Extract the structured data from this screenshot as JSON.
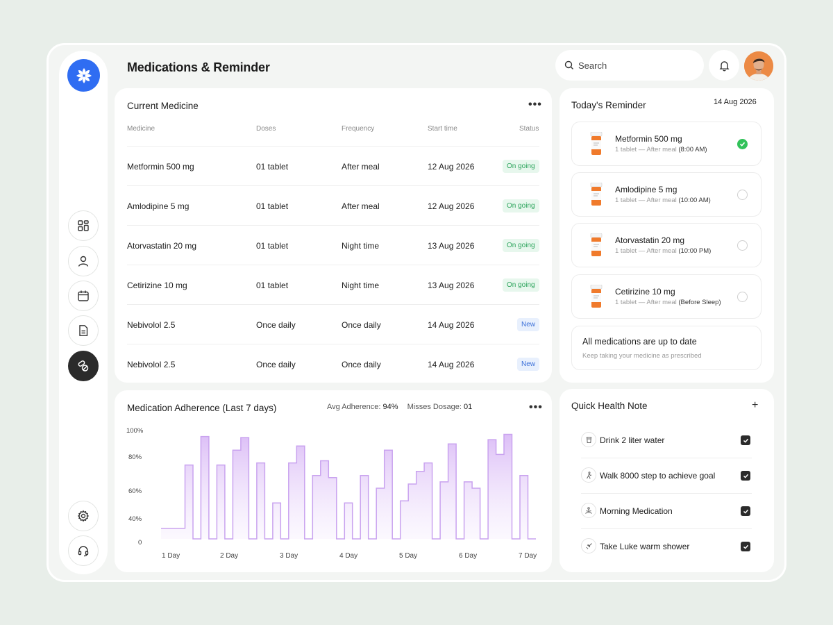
{
  "header": {
    "title": "Medications & Reminder",
    "search_placeholder": "Search"
  },
  "current_medicine": {
    "title": "Current Medicine",
    "columns": [
      "Medicine",
      "Doses",
      "Frequency",
      "Start time",
      "Status"
    ],
    "rows": [
      {
        "medicine": "Metformin 500 mg",
        "doses": "01 tablet",
        "frequency": "After meal",
        "start": "12 Aug 2026",
        "status": "On going"
      },
      {
        "medicine": "Amlodipine 5 mg",
        "doses": "01 tablet",
        "frequency": "After meal",
        "start": "12 Aug 2026",
        "status": "On going"
      },
      {
        "medicine": "Atorvastatin 20 mg",
        "doses": "01 tablet",
        "frequency": "Night time",
        "start": "13 Aug 2026",
        "status": "On going"
      },
      {
        "medicine": "Cetirizine 10 mg",
        "doses": "01 tablet",
        "frequency": "Night time",
        "start": "13 Aug 2026",
        "status": "On going"
      },
      {
        "medicine": "Nebivolol  2.5",
        "doses": "Once daily",
        "frequency": "Once daily",
        "start": "14 Aug 2026",
        "status": "New"
      },
      {
        "medicine": "Nebivolol  2.5",
        "doses": "Once daily",
        "frequency": "Once daily",
        "start": "14 Aug 2026",
        "status": "New"
      }
    ]
  },
  "reminder": {
    "title": "Today's Reminder",
    "date": "14 Aug 2026",
    "items": [
      {
        "name": "Metformin 500 mg",
        "detail": "1 tablet — After meal",
        "time": "(8:00 AM)",
        "done": true
      },
      {
        "name": "Amlodipine 5 mg",
        "detail": "1 tablet — After meal",
        "time": "(10:00 AM)",
        "done": false
      },
      {
        "name": "Atorvastatin 20 mg",
        "detail": "1 tablet — After meal",
        "time": "(10:00 PM)",
        "done": false
      },
      {
        "name": "Cetirizine 10 mg",
        "detail": "1 tablet — After meal",
        "time": "(Before Sleep)",
        "done": false
      }
    ],
    "status_title": "All medications are up to date",
    "status_sub": "Keep taking your medicine as prescribed"
  },
  "adherence": {
    "title": "Medication Adherence (Last 7 days)",
    "avg_label": "Avg Adherence:",
    "avg_value": "94%",
    "misses_label": "Misses Dosage:",
    "misses_value": "01"
  },
  "chart_data": {
    "type": "area",
    "title": "Medication Adherence (Last 7 days)",
    "y_ticks": [
      "100%",
      "80%",
      "60%",
      "40%",
      "0"
    ],
    "x_labels": [
      "1 Day",
      "2 Day",
      "3 Day",
      "4 Day",
      "5 Day",
      "6 Day",
      "7 Day"
    ],
    "ylim": [
      0,
      100
    ],
    "values": [
      10,
      10,
      10,
      70,
      0,
      97,
      0,
      70,
      0,
      84,
      96,
      0,
      72,
      0,
      34,
      0,
      72,
      88,
      0,
      60,
      74,
      58,
      0,
      34,
      0,
      60,
      0,
      48,
      84,
      0,
      36,
      52,
      64,
      72,
      0,
      54,
      90,
      0,
      54,
      48,
      0,
      94,
      80,
      99,
      0,
      60,
      0
    ],
    "color": "#c9a3ef"
  },
  "notes": {
    "title": "Quick Health Note",
    "add_label": "+",
    "items": [
      {
        "icon": "cup-icon",
        "text": "Drink 2 liter water"
      },
      {
        "icon": "walk-icon",
        "text": "Walk 8000 step to achieve goal"
      },
      {
        "icon": "meditation-icon",
        "text": "Morning Medication"
      },
      {
        "icon": "shower-icon",
        "text": "Take Luke warm shower"
      }
    ]
  }
}
